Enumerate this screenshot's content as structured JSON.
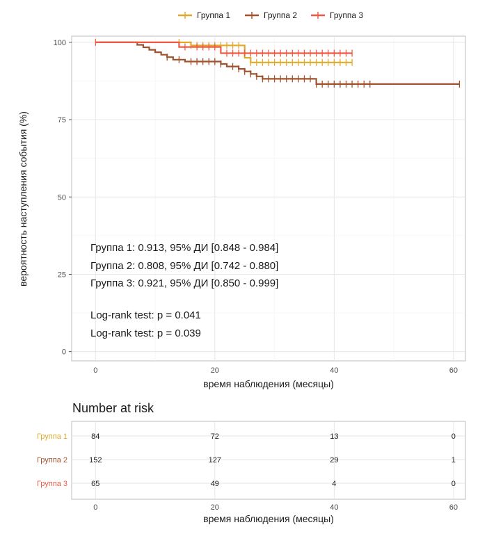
{
  "chart_data": [
    {
      "type": "line",
      "subtype": "kaplan-meier",
      "xlabel": "время наблюдения (месяцы)",
      "ylabel": "вероятность наступления события (%)",
      "xlim": [
        -4,
        62
      ],
      "ylim": [
        -3,
        102
      ],
      "x_ticks": [
        0,
        20,
        40,
        60
      ],
      "y_ticks": [
        0,
        25,
        50,
        75,
        100
      ],
      "grid": true,
      "legend_position": "top",
      "series": [
        {
          "name": "Группа 1",
          "color": "#E0A92B",
          "steps": [
            [
              0,
              100
            ],
            [
              16,
              100
            ],
            [
              16,
              99
            ],
            [
              25,
              99
            ],
            [
              25,
              95
            ],
            [
              26,
              95
            ],
            [
              26,
              93.5
            ],
            [
              43,
              93.5
            ]
          ],
          "censor_x": [
            14,
            16,
            17,
            18,
            19,
            20,
            21,
            22,
            23,
            24,
            26,
            27,
            28,
            29,
            30,
            31,
            32,
            33,
            34,
            35,
            36,
            37,
            38,
            39,
            40,
            41,
            42,
            43
          ]
        },
        {
          "name": "Группа 2",
          "color": "#A0522D",
          "steps": [
            [
              0,
              100
            ],
            [
              7,
              100
            ],
            [
              7,
              99.2
            ],
            [
              8,
              99.2
            ],
            [
              8,
              98.4
            ],
            [
              9,
              98.4
            ],
            [
              9,
              97.6
            ],
            [
              10,
              97.6
            ],
            [
              10,
              96.8
            ],
            [
              11,
              96.8
            ],
            [
              11,
              96
            ],
            [
              12,
              96
            ],
            [
              12,
              95.2
            ],
            [
              13,
              95.2
            ],
            [
              13,
              94.4
            ],
            [
              15,
              94.4
            ],
            [
              15,
              93.8
            ],
            [
              21,
              93.8
            ],
            [
              21,
              93
            ],
            [
              22,
              93
            ],
            [
              22,
              92.2
            ],
            [
              24,
              92.2
            ],
            [
              24,
              91.4
            ],
            [
              25,
              91.4
            ],
            [
              25,
              90.6
            ],
            [
              26,
              90.6
            ],
            [
              26,
              89.8
            ],
            [
              27,
              89.8
            ],
            [
              27,
              89
            ],
            [
              28,
              89
            ],
            [
              28,
              88.2
            ],
            [
              37,
              88.2
            ],
            [
              37,
              86.5
            ],
            [
              61,
              86.5
            ]
          ],
          "censor_x": [
            12,
            14,
            16,
            17,
            18,
            19,
            20,
            21,
            23,
            24,
            25,
            26,
            27,
            28,
            29,
            30,
            31,
            32,
            33,
            34,
            35,
            36,
            37,
            38,
            39,
            40,
            41,
            42,
            43,
            44,
            45,
            46,
            61
          ]
        },
        {
          "name": "Группа 3",
          "color": "#F05A44",
          "steps": [
            [
              0,
              100
            ],
            [
              14,
              100
            ],
            [
              14,
              98.5
            ],
            [
              21,
              98.5
            ],
            [
              21,
              96.5
            ],
            [
              43,
              96.5
            ]
          ],
          "censor_x": [
            0,
            15,
            17,
            18,
            19,
            20,
            22,
            23,
            24,
            25,
            26,
            27,
            28,
            29,
            30,
            31,
            32,
            33,
            34,
            35,
            36,
            37,
            38,
            39,
            40,
            41,
            42,
            43
          ]
        }
      ],
      "annotations": [
        "Группа 1: 0.913, 95% ДИ [0.848 - 0.984]",
        "Группа 2: 0.808, 95% ДИ [0.742 - 0.880]",
        "Группа 3: 0.921, 95% ДИ [0.850 - 0.999]",
        "Log-rank test: p = 0.041",
        "Log-rank test: p = 0.039"
      ]
    },
    {
      "type": "table",
      "title": "Number at risk",
      "xlabel": "время наблюдения (месяцы)",
      "x_ticks": [
        0,
        20,
        40,
        60
      ],
      "rows": [
        {
          "name": "Группа 1",
          "color": "#E0A92B",
          "values": [
            84,
            72,
            13,
            0
          ]
        },
        {
          "name": "Группа 2",
          "color": "#A0522D",
          "values": [
            152,
            127,
            29,
            1
          ]
        },
        {
          "name": "Группа 3",
          "color": "#F05A44",
          "values": [
            65,
            49,
            4,
            0
          ]
        }
      ]
    }
  ]
}
